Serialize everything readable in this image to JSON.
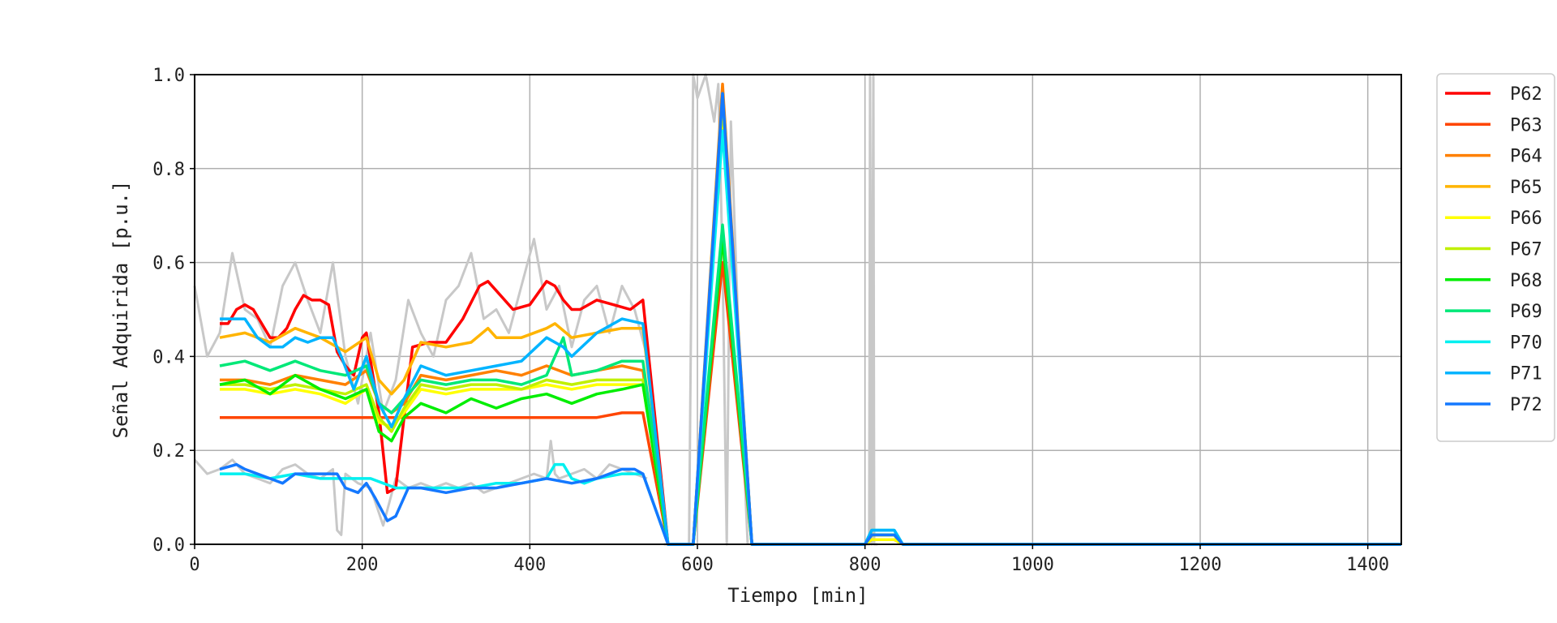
{
  "chart_data": {
    "type": "line",
    "xlabel": "Tiempo [min]",
    "ylabel": "Señal Adquirida [p.u.]",
    "xlim": [
      0,
      1440
    ],
    "ylim": [
      0,
      1.0
    ],
    "xticks": [
      0,
      200,
      400,
      600,
      800,
      1000,
      1200,
      1400
    ],
    "yticks": [
      0.0,
      0.2,
      0.4,
      0.6,
      0.8,
      1.0
    ],
    "xtick_labels": [
      "0",
      "200",
      "400",
      "600",
      "800",
      "1000",
      "1200",
      "1400"
    ],
    "ytick_labels": [
      "0.0",
      "0.2",
      "0.4",
      "0.6",
      "0.8",
      "1.0"
    ],
    "grid": true,
    "legend_position": "outside-right",
    "raw_signal_color": "#c8c8c8",
    "raw_upper": {
      "x": [
        0,
        15,
        30,
        45,
        60,
        75,
        90,
        105,
        120,
        135,
        150,
        165,
        180,
        195,
        210,
        225,
        240,
        255,
        270,
        285,
        300,
        315,
        330,
        345,
        360,
        375,
        390,
        405,
        420,
        435,
        450,
        465,
        480,
        495,
        510,
        525,
        540
      ],
      "y": [
        0.55,
        0.4,
        0.45,
        0.62,
        0.5,
        0.48,
        0.42,
        0.55,
        0.6,
        0.52,
        0.45,
        0.6,
        0.4,
        0.3,
        0.45,
        0.28,
        0.35,
        0.52,
        0.45,
        0.4,
        0.52,
        0.55,
        0.62,
        0.48,
        0.5,
        0.45,
        0.55,
        0.65,
        0.5,
        0.55,
        0.42,
        0.52,
        0.55,
        0.45,
        0.55,
        0.5,
        0.4
      ]
    },
    "raw_lower": {
      "x": [
        0,
        15,
        30,
        45,
        60,
        75,
        90,
        105,
        120,
        135,
        150,
        165,
        170,
        175,
        180,
        195,
        210,
        225,
        240,
        255,
        270,
        285,
        300,
        315,
        330,
        345,
        360,
        375,
        390,
        405,
        420,
        425,
        430,
        435,
        450,
        465,
        480,
        495,
        510,
        525,
        540
      ],
      "y": [
        0.18,
        0.15,
        0.16,
        0.18,
        0.15,
        0.14,
        0.13,
        0.16,
        0.17,
        0.15,
        0.14,
        0.16,
        0.03,
        0.02,
        0.15,
        0.13,
        0.12,
        0.04,
        0.14,
        0.12,
        0.13,
        0.12,
        0.13,
        0.12,
        0.13,
        0.11,
        0.12,
        0.13,
        0.14,
        0.15,
        0.14,
        0.22,
        0.15,
        0.14,
        0.15,
        0.16,
        0.14,
        0.17,
        0.16,
        0.15,
        0.14
      ]
    },
    "raw_peak": {
      "x": [
        560,
        590,
        595,
        600,
        610,
        620,
        625,
        630,
        635,
        640,
        650,
        660
      ],
      "y": [
        0.0,
        0.0,
        1.0,
        0.95,
        1.0,
        0.9,
        0.98,
        0.6,
        0.0,
        0.9,
        0.4,
        0.0
      ]
    },
    "raw_spike": {
      "x": [
        800,
        805,
        806,
        808,
        810,
        811,
        815
      ],
      "y": [
        0.0,
        0.0,
        1.0,
        0.0,
        1.0,
        0.0,
        0.0
      ]
    },
    "series": [
      {
        "name": "P62",
        "color": "#ff0000",
        "x": [
          30,
          40,
          50,
          60,
          70,
          80,
          90,
          100,
          110,
          120,
          130,
          140,
          150,
          160,
          170,
          180,
          190,
          200,
          205,
          210,
          220,
          230,
          240,
          250,
          260,
          280,
          300,
          320,
          340,
          350,
          360,
          380,
          400,
          420,
          430,
          440,
          450,
          460,
          480,
          500,
          520,
          535,
          565,
          595,
          630,
          665,
          800,
          808,
          835,
          845,
          1440
        ],
        "y": [
          0.47,
          0.47,
          0.5,
          0.51,
          0.5,
          0.47,
          0.44,
          0.44,
          0.46,
          0.5,
          0.53,
          0.52,
          0.52,
          0.51,
          0.41,
          0.38,
          0.36,
          0.44,
          0.45,
          0.39,
          0.28,
          0.11,
          0.12,
          0.27,
          0.42,
          0.43,
          0.43,
          0.48,
          0.55,
          0.56,
          0.54,
          0.5,
          0.51,
          0.56,
          0.55,
          0.52,
          0.5,
          0.5,
          0.52,
          0.51,
          0.5,
          0.52,
          0.0,
          0.0,
          0.92,
          0.0,
          0.0,
          0.01,
          0.01,
          0.0,
          0.0
        ]
      },
      {
        "name": "P63",
        "color": "#ff4500",
        "x": [
          30,
          60,
          90,
          120,
          150,
          180,
          210,
          240,
          270,
          300,
          330,
          360,
          390,
          420,
          450,
          480,
          510,
          535,
          565,
          595,
          630,
          665,
          800,
          808,
          835,
          845,
          1440
        ],
        "y": [
          0.27,
          0.27,
          0.27,
          0.27,
          0.27,
          0.27,
          0.27,
          0.27,
          0.27,
          0.27,
          0.27,
          0.27,
          0.27,
          0.27,
          0.27,
          0.27,
          0.28,
          0.28,
          0.0,
          0.0,
          0.6,
          0.0,
          0.0,
          0.02,
          0.02,
          0.0,
          0.0
        ]
      },
      {
        "name": "P64",
        "color": "#ff8000",
        "x": [
          30,
          60,
          90,
          120,
          150,
          180,
          205,
          220,
          235,
          250,
          270,
          300,
          330,
          360,
          390,
          420,
          450,
          480,
          510,
          535,
          565,
          595,
          630,
          665,
          800,
          808,
          835,
          845,
          1440
        ],
        "y": [
          0.35,
          0.35,
          0.34,
          0.36,
          0.35,
          0.34,
          0.37,
          0.3,
          0.28,
          0.3,
          0.36,
          0.35,
          0.36,
          0.37,
          0.36,
          0.38,
          0.36,
          0.37,
          0.38,
          0.37,
          0.0,
          0.0,
          0.98,
          0.0,
          0.0,
          0.02,
          0.02,
          0.0,
          0.0
        ]
      },
      {
        "name": "P65",
        "color": "#ffb400",
        "x": [
          30,
          60,
          90,
          120,
          150,
          180,
          205,
          220,
          235,
          250,
          270,
          300,
          330,
          350,
          360,
          390,
          420,
          430,
          450,
          480,
          510,
          535,
          565,
          595,
          630,
          665,
          800,
          808,
          835,
          845,
          1440
        ],
        "y": [
          0.44,
          0.45,
          0.43,
          0.46,
          0.44,
          0.41,
          0.44,
          0.35,
          0.32,
          0.35,
          0.43,
          0.42,
          0.43,
          0.46,
          0.44,
          0.44,
          0.46,
          0.47,
          0.44,
          0.45,
          0.46,
          0.46,
          0.0,
          0.0,
          0.96,
          0.0,
          0.0,
          0.02,
          0.02,
          0.0,
          0.0
        ]
      },
      {
        "name": "P66",
        "color": "#ffff00",
        "x": [
          30,
          60,
          90,
          120,
          150,
          180,
          205,
          220,
          235,
          250,
          270,
          300,
          330,
          360,
          390,
          420,
          450,
          480,
          510,
          535,
          565,
          595,
          630,
          665,
          800,
          808,
          835,
          845,
          1440
        ],
        "y": [
          0.33,
          0.33,
          0.32,
          0.33,
          0.32,
          0.3,
          0.33,
          0.26,
          0.25,
          0.28,
          0.33,
          0.32,
          0.33,
          0.33,
          0.33,
          0.34,
          0.33,
          0.34,
          0.34,
          0.34,
          0.0,
          0.0,
          0.94,
          0.0,
          0.0,
          0.01,
          0.01,
          0.0,
          0.0
        ]
      },
      {
        "name": "P67",
        "color": "#c0f000",
        "x": [
          30,
          60,
          90,
          120,
          150,
          180,
          205,
          220,
          235,
          250,
          270,
          300,
          330,
          360,
          390,
          420,
          450,
          480,
          510,
          535,
          565,
          595,
          630,
          665,
          800,
          808,
          835,
          845,
          1440
        ],
        "y": [
          0.34,
          0.34,
          0.33,
          0.34,
          0.33,
          0.32,
          0.34,
          0.27,
          0.24,
          0.29,
          0.34,
          0.33,
          0.34,
          0.34,
          0.33,
          0.35,
          0.34,
          0.35,
          0.35,
          0.35,
          0.0,
          0.0,
          0.93,
          0.0,
          0.0,
          0.02,
          0.02,
          0.0,
          0.0
        ]
      },
      {
        "name": "P68",
        "color": "#00ee00",
        "x": [
          30,
          60,
          90,
          120,
          150,
          180,
          205,
          220,
          235,
          250,
          270,
          300,
          330,
          360,
          390,
          420,
          450,
          480,
          510,
          535,
          565,
          595,
          630,
          665,
          800,
          808,
          835,
          845,
          1440
        ],
        "y": [
          0.34,
          0.35,
          0.32,
          0.36,
          0.33,
          0.31,
          0.33,
          0.24,
          0.22,
          0.27,
          0.3,
          0.28,
          0.31,
          0.29,
          0.31,
          0.32,
          0.3,
          0.32,
          0.33,
          0.34,
          0.0,
          0.0,
          0.65,
          0.0,
          0.0,
          0.02,
          0.02,
          0.0,
          0.0
        ]
      },
      {
        "name": "P69",
        "color": "#00e878",
        "x": [
          30,
          60,
          90,
          120,
          150,
          180,
          205,
          220,
          235,
          250,
          270,
          300,
          330,
          360,
          390,
          420,
          440,
          450,
          480,
          510,
          535,
          565,
          595,
          630,
          665,
          800,
          808,
          835,
          845,
          1440
        ],
        "y": [
          0.38,
          0.39,
          0.37,
          0.39,
          0.37,
          0.36,
          0.38,
          0.3,
          0.28,
          0.31,
          0.35,
          0.34,
          0.35,
          0.35,
          0.34,
          0.36,
          0.44,
          0.36,
          0.37,
          0.39,
          0.39,
          0.0,
          0.0,
          0.68,
          0.0,
          0.0,
          0.03,
          0.03,
          0.0,
          0.0
        ]
      },
      {
        "name": "P70",
        "color": "#00f0f0",
        "x": [
          30,
          60,
          90,
          120,
          150,
          180,
          210,
          240,
          270,
          300,
          330,
          360,
          390,
          420,
          430,
          440,
          450,
          465,
          480,
          510,
          535,
          565,
          595,
          630,
          665,
          800,
          808,
          835,
          845,
          1440
        ],
        "y": [
          0.15,
          0.15,
          0.14,
          0.15,
          0.14,
          0.14,
          0.14,
          0.12,
          0.12,
          0.12,
          0.12,
          0.13,
          0.13,
          0.14,
          0.17,
          0.17,
          0.14,
          0.13,
          0.14,
          0.15,
          0.15,
          0.0,
          0.0,
          0.88,
          0.0,
          0.0,
          0.03,
          0.03,
          0.0,
          0.0
        ]
      },
      {
        "name": "P71",
        "color": "#00b4ff",
        "x": [
          30,
          45,
          60,
          75,
          90,
          105,
          120,
          135,
          150,
          165,
          175,
          190,
          205,
          220,
          235,
          250,
          270,
          300,
          330,
          360,
          390,
          420,
          440,
          450,
          480,
          510,
          535,
          565,
          595,
          630,
          665,
          800,
          808,
          835,
          845,
          1440
        ],
        "y": [
          0.48,
          0.48,
          0.48,
          0.44,
          0.42,
          0.42,
          0.44,
          0.43,
          0.44,
          0.44,
          0.4,
          0.33,
          0.4,
          0.3,
          0.25,
          0.31,
          0.38,
          0.36,
          0.37,
          0.38,
          0.39,
          0.44,
          0.42,
          0.4,
          0.45,
          0.48,
          0.47,
          0.0,
          0.0,
          0.96,
          0.0,
          0.0,
          0.03,
          0.03,
          0.0,
          0.0
        ]
      },
      {
        "name": "P72",
        "color": "#1478ff",
        "x": [
          30,
          50,
          60,
          75,
          90,
          105,
          120,
          135,
          150,
          170,
          180,
          195,
          205,
          215,
          230,
          240,
          255,
          270,
          300,
          330,
          360,
          390,
          420,
          450,
          480,
          510,
          525,
          535,
          565,
          595,
          630,
          665,
          800,
          808,
          835,
          845,
          1440
        ],
        "y": [
          0.16,
          0.17,
          0.16,
          0.15,
          0.14,
          0.13,
          0.15,
          0.15,
          0.15,
          0.15,
          0.12,
          0.11,
          0.13,
          0.1,
          0.05,
          0.06,
          0.12,
          0.12,
          0.11,
          0.12,
          0.12,
          0.13,
          0.14,
          0.13,
          0.14,
          0.16,
          0.16,
          0.15,
          0.0,
          0.0,
          0.96,
          0.0,
          0.0,
          0.02,
          0.02,
          0.0,
          0.0
        ]
      }
    ]
  }
}
